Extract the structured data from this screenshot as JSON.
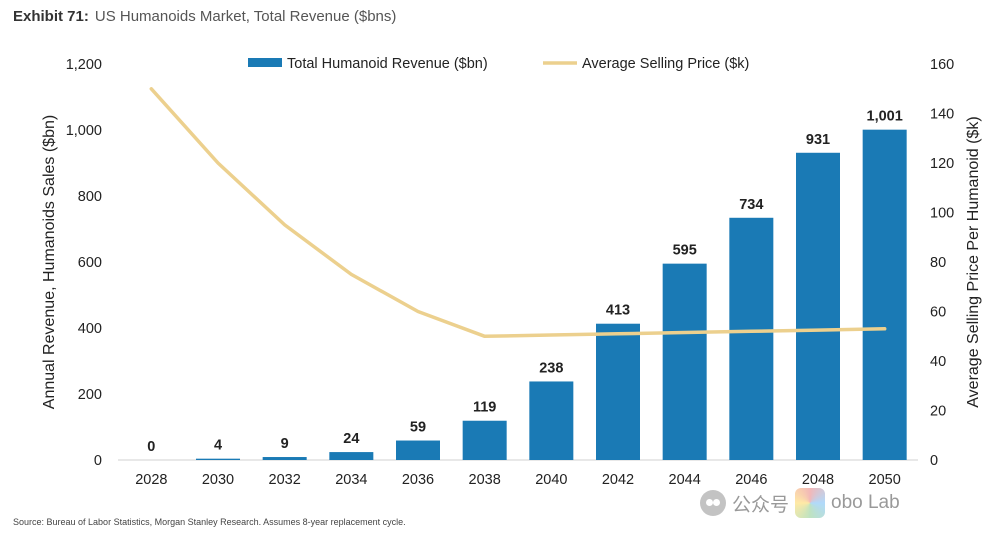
{
  "header": {
    "exhibit": "Exhibit 71:",
    "title": "US Humanoids Market, Total Revenue ($bns)"
  },
  "source": "Source: Bureau of Labor Statistics, Morgan Stanley Research. Assumes 8-year replacement cycle.",
  "watermark": {
    "left_text": "公众号",
    "right_text": "obo Lab"
  },
  "chart_data": {
    "type": "bar",
    "categories": [
      "2028",
      "2030",
      "2032",
      "2034",
      "2036",
      "2038",
      "2040",
      "2042",
      "2044",
      "2046",
      "2048",
      "2050"
    ],
    "series": [
      {
        "name": "Total Humanoid Revenue ($bn)",
        "kind": "bar",
        "axis": "left",
        "values": [
          0,
          4,
          9,
          24,
          59,
          119,
          238,
          413,
          595,
          734,
          931,
          1001
        ],
        "labels": [
          "0",
          "4",
          "9",
          "24",
          "59",
          "119",
          "238",
          "413",
          "595",
          "734",
          "931",
          "1,001"
        ]
      },
      {
        "name": "Average Selling Price ($k)",
        "kind": "line",
        "axis": "right",
        "values": [
          150,
          120,
          95,
          75,
          60,
          50,
          50.5,
          51,
          51.5,
          52,
          52.5,
          53
        ]
      }
    ],
    "ylabel_left": "Annual Revenue, Humanoids Sales ($bn)",
    "ylabel_right": "Average Selling Price Per Humanoid ($k)",
    "ylim_left": [
      0,
      1200
    ],
    "yticks_left": [
      "0",
      "200",
      "400",
      "600",
      "800",
      "1,000",
      "1,200"
    ],
    "ylim_right": [
      0,
      160
    ],
    "yticks_right": [
      "0",
      "20",
      "40",
      "60",
      "80",
      "100",
      "120",
      "140",
      "160"
    ],
    "legend_position": "top-center",
    "colors": {
      "bar": "#1a7ab5",
      "line": "#ecd08e"
    }
  }
}
